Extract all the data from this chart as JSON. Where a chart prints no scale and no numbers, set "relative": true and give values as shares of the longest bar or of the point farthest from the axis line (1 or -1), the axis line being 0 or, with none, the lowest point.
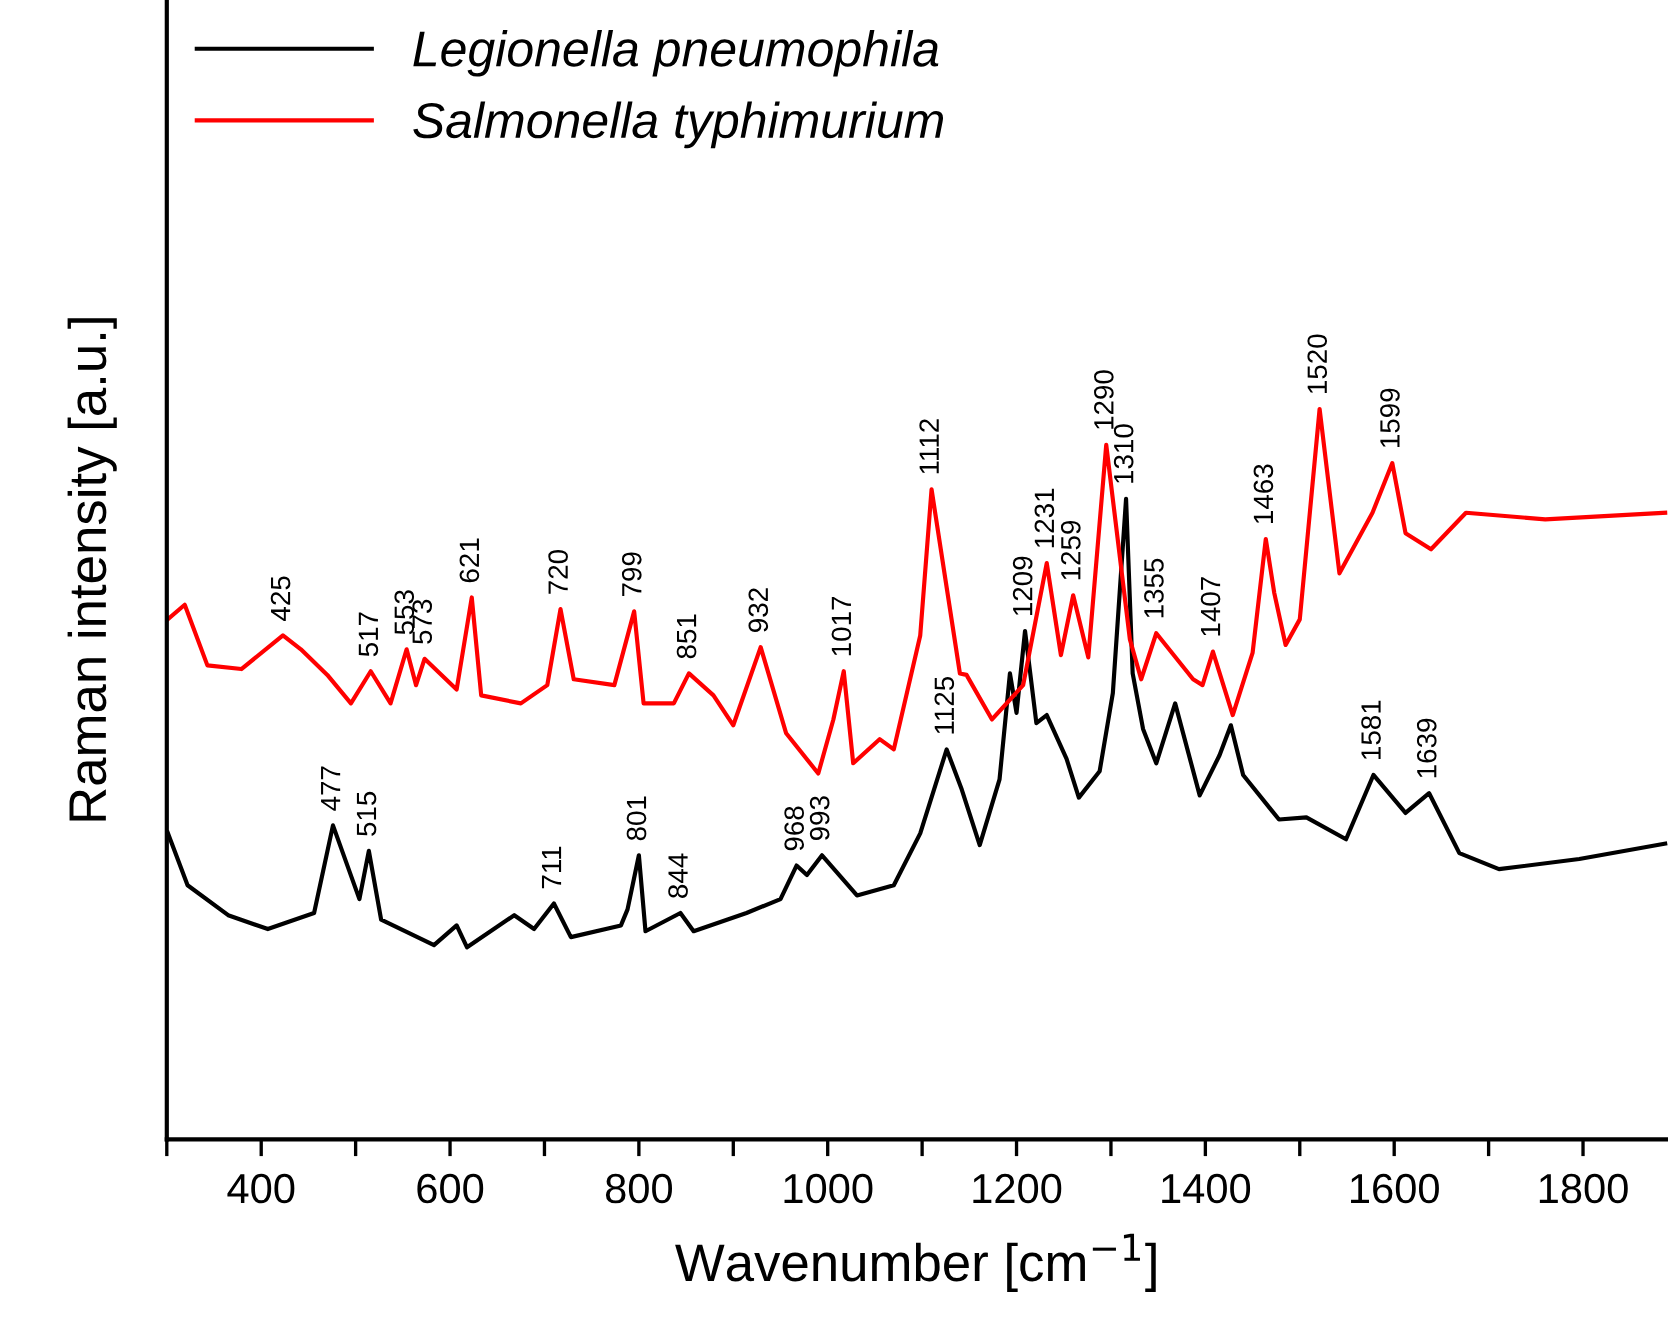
{
  "chart_data": {
    "type": "line",
    "relative": true,
    "xlabel": "Wavenumber [cm$^{−1}$]",
    "ylabel": "Raman intensity [a.u.]",
    "xlim": [
      300,
      1890
    ],
    "xticks": [
      {
        "value": 300,
        "label": null
      },
      400,
      {
        "value": 500,
        "label": null
      },
      600,
      {
        "value": 700,
        "label": null
      },
      800,
      {
        "value": 900,
        "label": null
      },
      1000,
      {
        "value": 1100,
        "label": null
      },
      1200,
      {
        "value": 1300,
        "label": null
      },
      1400,
      {
        "value": 1500,
        "label": null
      },
      1600,
      {
        "value": 1700,
        "label": null
      },
      1800
    ],
    "grid": false,
    "legend": "top left",
    "marker": "none",
    "line_style": "solid",
    "series": [
      {
        "name": "Legionella pneumophila",
        "color": "#000000",
        "x": [
          301,
          322,
          365,
          407,
          456,
          476,
          504,
          514,
          527,
          583,
          607,
          618,
          668,
          689,
          710,
          728,
          781,
          788,
          800,
          807,
          844,
          858,
          914,
          950,
          967,
          978,
          994,
          1031,
          1070,
          1098,
          1126,
          1142,
          1161,
          1182,
          1193,
          1200,
          1209,
          1221,
          1232,
          1253,
          1266,
          1288,
          1302,
          1316,
          1323,
          1334,
          1348,
          1368,
          1394,
          1415,
          1427,
          1440,
          1478,
          1507,
          1549,
          1578,
          1612,
          1637,
          1669,
          1711,
          1796,
          1887
        ],
        "values": [
          0.42,
          0.348,
          0.307,
          0.288,
          0.31,
          0.43,
          0.329,
          0.395,
          0.301,
          0.266,
          0.293,
          0.263,
          0.307,
          0.288,
          0.323,
          0.277,
          0.293,
          0.315,
          0.389,
          0.285,
          0.31,
          0.285,
          0.31,
          0.329,
          0.375,
          0.362,
          0.389,
          0.334,
          0.348,
          0.419,
          0.534,
          0.479,
          0.403,
          0.493,
          0.638,
          0.584,
          0.696,
          0.57,
          0.581,
          0.521,
          0.468,
          0.504,
          0.611,
          0.877,
          0.638,
          0.562,
          0.515,
          0.597,
          0.471,
          0.526,
          0.567,
          0.499,
          0.438,
          0.441,
          0.411,
          0.499,
          0.447,
          0.474,
          0.392,
          0.37,
          0.384,
          0.405
        ]
      },
      {
        "name": "Salmonella typhimurium",
        "color": "#ff0000",
        "x": [
          301,
          319,
          343,
          379,
          423,
          442,
          470,
          495,
          516,
          537,
          554,
          564,
          573,
          607,
          623,
          633,
          675,
          703,
          717,
          731,
          774,
          795,
          805,
          837,
          853,
          879,
          900,
          929,
          956,
          990,
          1006,
          1017,
          1027,
          1055,
          1070,
          1098,
          1110,
          1140,
          1147,
          1174,
          1207,
          1232,
          1247,
          1260,
          1276,
          1295,
          1320,
          1332,
          1348,
          1387,
          1397,
          1408,
          1429,
          1450,
          1464,
          1473,
          1485,
          1500,
          1521,
          1542,
          1577,
          1598,
          1612,
          1639,
          1676,
          1760,
          1887
        ],
        "values": [
          0.712,
          0.732,
          0.649,
          0.644,
          0.69,
          0.671,
          0.636,
          0.597,
          0.641,
          0.597,
          0.671,
          0.622,
          0.658,
          0.616,
          0.742,
          0.608,
          0.597,
          0.622,
          0.726,
          0.63,
          0.622,
          0.723,
          0.597,
          0.597,
          0.638,
          0.608,
          0.567,
          0.674,
          0.556,
          0.501,
          0.575,
          0.641,
          0.515,
          0.548,
          0.534,
          0.69,
          0.89,
          0.638,
          0.636,
          0.575,
          0.622,
          0.789,
          0.663,
          0.745,
          0.66,
          0.951,
          0.685,
          0.63,
          0.693,
          0.63,
          0.622,
          0.668,
          0.581,
          0.666,
          0.822,
          0.748,
          0.677,
          0.712,
          1.0,
          0.775,
          0.858,
          0.926,
          0.83,
          0.808,
          0.858,
          0.849,
          0.858
        ]
      }
    ],
    "annotations": [
      {
        "text": "425",
        "x": 423,
        "y": 0.69
      },
      {
        "text": "517",
        "x": 516,
        "y": 0.641
      },
      {
        "text": "553",
        "x": 554,
        "y": 0.671
      },
      {
        "text": "573",
        "x": 573,
        "y": 0.658
      },
      {
        "text": "621",
        "x": 623,
        "y": 0.742
      },
      {
        "text": "720",
        "x": 717,
        "y": 0.726
      },
      {
        "text": "799",
        "x": 795,
        "y": 0.723
      },
      {
        "text": "851",
        "x": 853,
        "y": 0.638
      },
      {
        "text": "932",
        "x": 929,
        "y": 0.674
      },
      {
        "text": "1017",
        "x": 1017,
        "y": 0.641
      },
      {
        "text": "1112",
        "x": 1110,
        "y": 0.89
      },
      {
        "text": "1231",
        "x": 1232,
        "y": 0.789
      },
      {
        "text": "1259",
        "x": 1260,
        "y": 0.745
      },
      {
        "text": "1290",
        "x": 1295,
        "y": 0.951
      },
      {
        "text": "1355",
        "x": 1348,
        "y": 0.693
      },
      {
        "text": "1407",
        "x": 1408,
        "y": 0.668
      },
      {
        "text": "1463",
        "x": 1464,
        "y": 0.822
      },
      {
        "text": "1520",
        "x": 1521,
        "y": 1.0
      },
      {
        "text": "1599",
        "x": 1598,
        "y": 0.926
      },
      {
        "text": "477",
        "x": 476,
        "y": 0.43
      },
      {
        "text": "515",
        "x": 514,
        "y": 0.395
      },
      {
        "text": "711",
        "x": 710,
        "y": 0.323
      },
      {
        "text": "801",
        "x": 800,
        "y": 0.389
      },
      {
        "text": "844",
        "x": 844,
        "y": 0.31
      },
      {
        "text": "968",
        "x": 967,
        "y": 0.375
      },
      {
        "text": "993",
        "x": 994,
        "y": 0.389
      },
      {
        "text": "1125",
        "x": 1126,
        "y": 0.534
      },
      {
        "text": "1209",
        "x": 1209,
        "y": 0.696
      },
      {
        "text": "1310",
        "x": 1316,
        "y": 0.877
      },
      {
        "text": "1581",
        "x": 1578,
        "y": 0.499
      },
      {
        "text": "1639",
        "x": 1637,
        "y": 0.474
      }
    ]
  }
}
